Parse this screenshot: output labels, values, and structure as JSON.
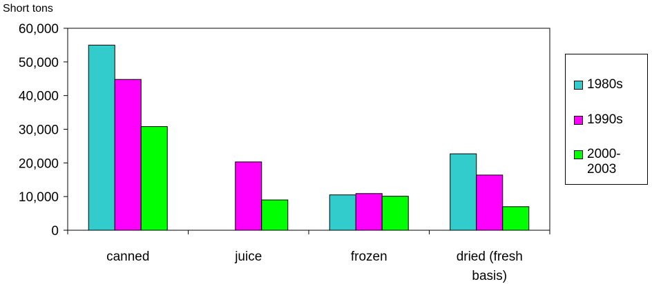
{
  "chart_data": {
    "type": "bar",
    "unit_label": "Short tons",
    "categories": [
      "canned",
      "juice",
      "frozen",
      "dried (fresh basis)"
    ],
    "category_label_lines": [
      [
        "canned"
      ],
      [
        "juice"
      ],
      [
        "frozen"
      ],
      [
        "dried (fresh",
        "basis)"
      ]
    ],
    "series": [
      {
        "name": "1980s",
        "color": "#33CCCC",
        "values": [
          55000,
          0,
          10500,
          22700
        ]
      },
      {
        "name": "1990s",
        "color": "#FF00FF",
        "values": [
          44800,
          20300,
          10900,
          16400
        ]
      },
      {
        "name": "2000-2003",
        "color": "#00FF00",
        "values": [
          30800,
          9000,
          10100,
          7000
        ]
      }
    ],
    "legend_labels": [
      "1980s",
      "1990s",
      "2000-\n2003"
    ],
    "yticks": [
      "0",
      "10,000",
      "20,000",
      "30,000",
      "40,000",
      "50,000",
      "60,000"
    ],
    "ylim": [
      0,
      60000
    ],
    "legend_position": "right",
    "grid": false
  }
}
